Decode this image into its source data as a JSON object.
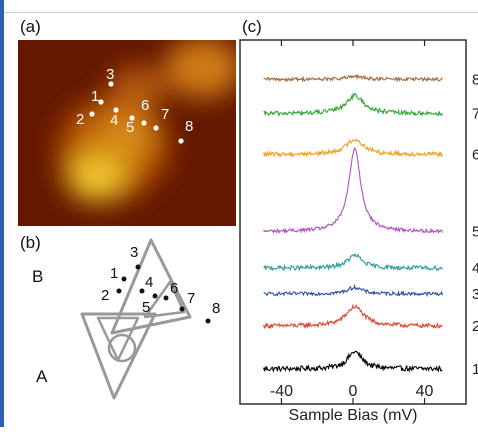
{
  "panel_labels": {
    "a": "(a)",
    "b": "(b)",
    "c": "(c)"
  },
  "panel_a": {
    "points": [
      {
        "label": "1"
      },
      {
        "label": "2"
      },
      {
        "label": "3"
      },
      {
        "label": "4"
      },
      {
        "label": "5"
      },
      {
        "label": "6"
      },
      {
        "label": "7"
      },
      {
        "label": "8"
      }
    ]
  },
  "panel_b": {
    "label_A": "A",
    "label_B": "B",
    "points": [
      {
        "label": "1"
      },
      {
        "label": "2"
      },
      {
        "label": "3"
      },
      {
        "label": "4"
      },
      {
        "label": "5"
      },
      {
        "label": "6"
      },
      {
        "label": "7"
      },
      {
        "label": "8"
      }
    ]
  },
  "chart_data": {
    "type": "line",
    "xlabel": "Sample Bias (mV)",
    "xlim": [
      -52,
      52
    ],
    "x_ticks": [
      -40,
      0,
      40
    ],
    "tick_labels": [
      "-40",
      "0",
      "40"
    ],
    "ylabel": "",
    "grid": false,
    "legend": "none",
    "series": [
      {
        "name": "1",
        "offset": 0.0,
        "baseline": 0.0,
        "peak_height": 0.4,
        "peak_center": 1,
        "peak_width": 5,
        "noise": 0.06,
        "color": "#000000"
      },
      {
        "name": "2",
        "offset": 1.0,
        "baseline": 0.0,
        "peak_height": 0.45,
        "peak_center": 1,
        "peak_width": 6,
        "noise": 0.05,
        "color": "#d94a35"
      },
      {
        "name": "3",
        "offset": 1.75,
        "baseline": 0.0,
        "peak_height": 0.15,
        "peak_center": 1,
        "peak_width": 5,
        "noise": 0.04,
        "color": "#2a4fa3"
      },
      {
        "name": "4",
        "offset": 2.35,
        "baseline": 0.0,
        "peak_height": 0.3,
        "peak_center": 1,
        "peak_width": 5,
        "noise": 0.05,
        "color": "#2e9a94"
      },
      {
        "name": "5",
        "offset": 3.2,
        "baseline": 0.0,
        "peak_height": 1.95,
        "peak_center": 1,
        "peak_width": 4,
        "noise": 0.04,
        "color": "#b150c0"
      },
      {
        "name": "6",
        "offset": 5.0,
        "baseline": 0.0,
        "peak_height": 0.35,
        "peak_center": 1,
        "peak_width": 6,
        "noise": 0.05,
        "color": "#f0a020"
      },
      {
        "name": "7",
        "offset": 5.95,
        "baseline": 0.0,
        "peak_height": 0.42,
        "peak_center": 1,
        "peak_width": 6,
        "noise": 0.05,
        "color": "#2ea534"
      },
      {
        "name": "8",
        "offset": 6.75,
        "baseline": 0.0,
        "peak_height": 0.06,
        "peak_center": 1,
        "peak_width": 6,
        "noise": 0.04,
        "color": "#a5683a"
      }
    ]
  }
}
